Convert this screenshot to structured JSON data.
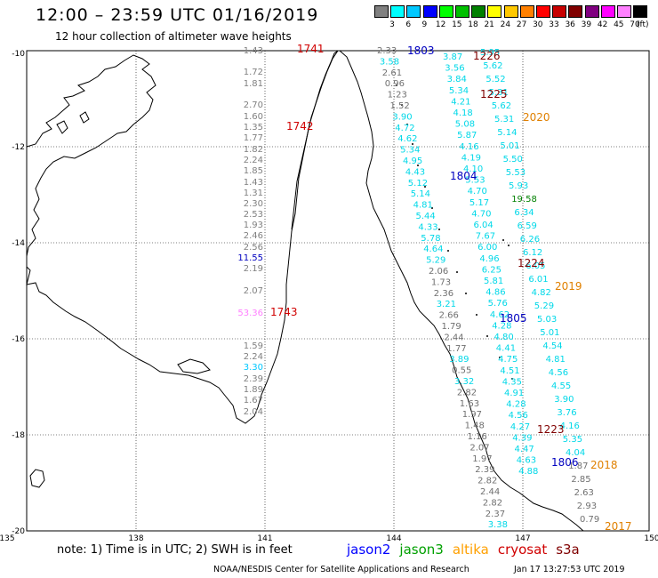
{
  "header": {
    "title": "12:00 – 23:59 UTC 01/16/2019",
    "subtitle": "12 hour collection of altimeter wave heights"
  },
  "legend": {
    "colors": [
      "#808080",
      "#00ffff",
      "#00c8ff",
      "#0000ff",
      "#00ff00",
      "#00c000",
      "#008000",
      "#ffff00",
      "#ffc800",
      "#ff8000",
      "#ff0000",
      "#c80000",
      "#800000",
      "#800080",
      "#ff00ff",
      "#ff80ff",
      "#000000"
    ],
    "labels": [
      "3",
      "6",
      "9",
      "12",
      "15",
      "18",
      "21",
      "24",
      "27",
      "30",
      "33",
      "36",
      "39",
      "42",
      "45",
      "70"
    ],
    "unit": "(ft)"
  },
  "axes": {
    "lat_labels": [
      "-10",
      "-12",
      "-14",
      "-16",
      "-18",
      "-20"
    ],
    "lon_labels": [
      "135",
      "138",
      "141",
      "144",
      "147",
      "150"
    ]
  },
  "passes": [
    {
      "text": "1741",
      "color": "#d00000"
    },
    {
      "text": "1742",
      "color": "#d00000"
    },
    {
      "text": "1743",
      "color": "#d00000"
    },
    {
      "text": "1803",
      "color": "#0000c0"
    },
    {
      "text": "1804",
      "color": "#0000c0"
    },
    {
      "text": "1805",
      "color": "#0000c0"
    },
    {
      "text": "1806",
      "color": "#0000c0"
    },
    {
      "text": "1226",
      "color": "#800000"
    },
    {
      "text": "1225",
      "color": "#800000"
    },
    {
      "text": "1224",
      "color": "#800000"
    },
    {
      "text": "1223",
      "color": "#800000"
    },
    {
      "text": "2020",
      "color": "#e08000"
    },
    {
      "text": "2019",
      "color": "#e08000"
    },
    {
      "text": "2018",
      "color": "#e08000"
    },
    {
      "text": "2017",
      "color": "#e08000"
    }
  ],
  "track_altika_1741": {
    "color": "#808080",
    "values": [
      "1.43",
      "1.72",
      "1.81",
      "2.70",
      "1.60",
      "1.35",
      "1.77",
      "1.82",
      "2.24",
      "1.85",
      "1.43",
      "1.31",
      "2.30",
      "2.53",
      "1.93",
      "2.46",
      "2.56",
      "11.55",
      "2.19",
      "2.07",
      "53.36",
      "1.59",
      "2.24",
      "3.30",
      "2.39",
      "1.89",
      "1.67",
      "2.04"
    ]
  },
  "track_jason2_1803": {
    "values": [
      "2.33",
      "3.58",
      "2.61",
      "0.96",
      "1.23",
      "1.52",
      "3.90",
      "4.72",
      "4.62",
      "5.34",
      "4.95",
      "4.43",
      "5.12",
      "5.14",
      "4.81",
      "5.44",
      "4.33",
      "5.78",
      "4.64",
      "5.29",
      "2.06",
      "1.73",
      "2.36",
      "3.21",
      "2.66",
      "1.79",
      "2.44",
      "1.77",
      "3.89",
      "0.55",
      "3.32",
      "2.82",
      "1.63",
      "1.97",
      "1.48",
      "1.16",
      "2.07",
      "1.97",
      "2.39",
      "2.82",
      "2.44",
      "2.82",
      "2.37",
      "3.38"
    ]
  },
  "track_cryosat_1226": {
    "values": [
      "3.87",
      "3.56",
      "3.84",
      "5.34",
      "4.21",
      "4.18",
      "5.08",
      "5.87",
      "4.16",
      "4.19",
      "4.10",
      "5.53",
      "4.70",
      "5.17",
      "4.70",
      "6.04",
      "7.67",
      "6.00",
      "4.96",
      "6.25",
      "5.81",
      "4.86",
      "5.76",
      "4.62",
      "4.28",
      "4.80",
      "4.41",
      "4.75",
      "4.51",
      "4.35",
      "4.91",
      "4.28",
      "4.56",
      "4.27",
      "4.39",
      "4.47",
      "4.63",
      "4.88"
    ]
  },
  "track_s3a_2020": {
    "values": [
      "5.95",
      "5.62",
      "5.52",
      "5.31",
      "5.62",
      "5.31",
      "5.14",
      "5.01",
      "5.50",
      "5.53",
      "5.93",
      "19.58",
      "6.34",
      "6.59",
      "6.26",
      "6.12",
      "6.05",
      "6.01",
      "4.82",
      "5.29",
      "5.03",
      "5.01",
      "4.54",
      "4.81",
      "4.56",
      "4.55",
      "3.90",
      "3.76",
      "4.16",
      "5.35",
      "4.04",
      "1.87",
      "2.85",
      "2.63",
      "2.93",
      "0.79"
    ]
  },
  "footer": {
    "note": "note: 1) Time is in UTC; 2) SWH is in feet",
    "satellites": [
      {
        "name": "jason2",
        "color": "#0000ff"
      },
      {
        "name": "jason3",
        "color": "#00a000"
      },
      {
        "name": "altika",
        "color": "#ffa000"
      },
      {
        "name": "cryosat",
        "color": "#d00000"
      },
      {
        "name": "s3a",
        "color": "#800000"
      }
    ],
    "credit": "NOAA/NESDIS Center for Satellite Applications and Research",
    "timestamp": "Jan 17 13:27:53 UTC 2019"
  }
}
